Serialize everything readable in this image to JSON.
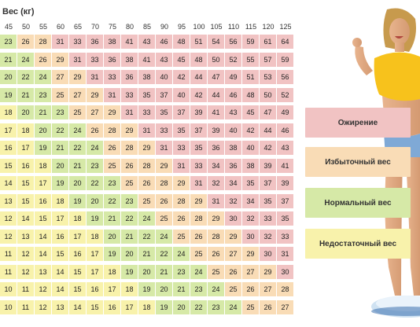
{
  "colors": {
    "obese": "#f1c3c3",
    "overweight": "#f9dcb6",
    "normal": "#d6e9a7",
    "underweight": "#f8f2ab"
  },
  "chart_data": {
    "type": "table",
    "xlabel": "Вес (кг)",
    "weights": [
      "45",
      "50",
      "55",
      "60",
      "65",
      "70",
      "75",
      "80",
      "85",
      "90",
      "95",
      "100",
      "105",
      "110",
      "115",
      "120",
      "125"
    ],
    "rows": [
      [
        23,
        26,
        28,
        31,
        33,
        36,
        38,
        41,
        43,
        46,
        48,
        51,
        54,
        56,
        59,
        61,
        64
      ],
      [
        21,
        24,
        26,
        29,
        31,
        33,
        36,
        38,
        41,
        43,
        45,
        48,
        50,
        52,
        55,
        57,
        59
      ],
      [
        20,
        22,
        24,
        27,
        29,
        31,
        33,
        36,
        38,
        40,
        42,
        44,
        47,
        49,
        51,
        53,
        56
      ],
      [
        19,
        21,
        23,
        25,
        27,
        29,
        31,
        33,
        35,
        37,
        40,
        42,
        44,
        46,
        48,
        50,
        52
      ],
      [
        18,
        20,
        21,
        23,
        25,
        27,
        29,
        31,
        33,
        35,
        37,
        39,
        41,
        43,
        45,
        47,
        49
      ],
      [
        17,
        18,
        20,
        22,
        24,
        26,
        28,
        29,
        31,
        33,
        35,
        37,
        39,
        40,
        42,
        44,
        46
      ],
      [
        16,
        17,
        19,
        21,
        22,
        24,
        26,
        28,
        29,
        31,
        33,
        35,
        36,
        38,
        40,
        42,
        43
      ],
      [
        15,
        16,
        18,
        20,
        21,
        23,
        25,
        26,
        28,
        29,
        31,
        33,
        34,
        36,
        38,
        39,
        41
      ],
      [
        14,
        15,
        17,
        19,
        20,
        22,
        23,
        25,
        26,
        28,
        29,
        31,
        32,
        34,
        35,
        37,
        39
      ],
      [
        13,
        15,
        16,
        18,
        19,
        20,
        22,
        23,
        25,
        26,
        28,
        29,
        31,
        32,
        34,
        35,
        37
      ],
      [
        12,
        14,
        15,
        17,
        18,
        19,
        21,
        22,
        24,
        25,
        26,
        28,
        29,
        30,
        32,
        33,
        35
      ],
      [
        12,
        13,
        14,
        16,
        17,
        18,
        20,
        21,
        22,
        24,
        25,
        26,
        28,
        29,
        30,
        32,
        33
      ],
      [
        11,
        12,
        14,
        15,
        16,
        17,
        19,
        20,
        21,
        22,
        24,
        25,
        26,
        27,
        29,
        30,
        31
      ],
      [
        11,
        12,
        13,
        14,
        15,
        17,
        18,
        19,
        20,
        21,
        23,
        24,
        25,
        26,
        27,
        29,
        30
      ],
      [
        10,
        11,
        12,
        14,
        15,
        16,
        17,
        18,
        19,
        20,
        21,
        23,
        24,
        25,
        26,
        27,
        28
      ],
      [
        10,
        11,
        12,
        13,
        14,
        15,
        16,
        17,
        18,
        19,
        20,
        22,
        23,
        24,
        25,
        26,
        27
      ]
    ]
  },
  "legend": [
    {
      "label": "Ожирение",
      "category": "obese"
    },
    {
      "label": "Избыточный вес",
      "category": "overweight"
    },
    {
      "label": "Нормальный вес",
      "category": "normal"
    },
    {
      "label": "Недостаточный вес",
      "category": "underweight"
    }
  ]
}
